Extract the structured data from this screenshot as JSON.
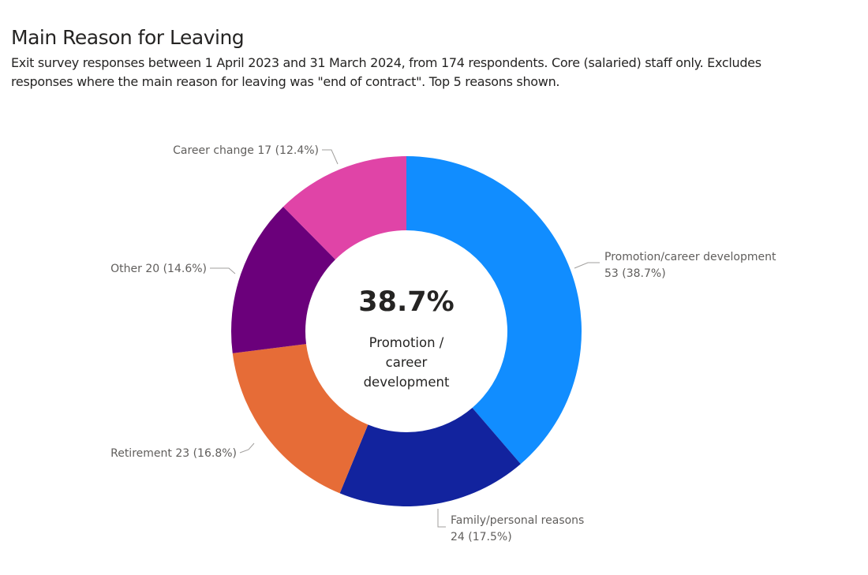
{
  "chart_data": {
    "type": "pie",
    "variant": "donut",
    "title": "Main Reason for Leaving",
    "subtitle": "Exit survey responses between 1 April 2023 and 31 March 2024, from 174 respondents. Core (salaried) staff only. Excludes responses where the main reason for leaving was \"end of contract\". Top 5 reasons shown.",
    "slices": [
      {
        "label": "Promotion/career development",
        "value": 53,
        "percent": 38.7,
        "display": [
          "Promotion/career development",
          "53 (38.7%)"
        ],
        "color": "#118DFF"
      },
      {
        "label": "Family/personal reasons",
        "value": 24,
        "percent": 17.5,
        "display": [
          "Family/personal reasons",
          "24 (17.5%)"
        ],
        "color": "#12239E"
      },
      {
        "label": "Retirement",
        "value": 23,
        "percent": 16.8,
        "display": [
          "Retirement 23 (16.8%)"
        ],
        "color": "#E66C37"
      },
      {
        "label": "Other",
        "value": 20,
        "percent": 14.6,
        "display": [
          "Other 20 (14.6%)"
        ],
        "color": "#6B007B"
      },
      {
        "label": "Career change",
        "value": 17,
        "percent": 12.4,
        "display": [
          "Career change 17 (12.4%)"
        ],
        "color": "#E044A7"
      }
    ],
    "center": {
      "value": "38.7%",
      "label_lines": [
        "Promotion /",
        "career",
        "development"
      ]
    },
    "start_angle": "12 o'clock",
    "direction": "clockwise",
    "legend": "none"
  }
}
